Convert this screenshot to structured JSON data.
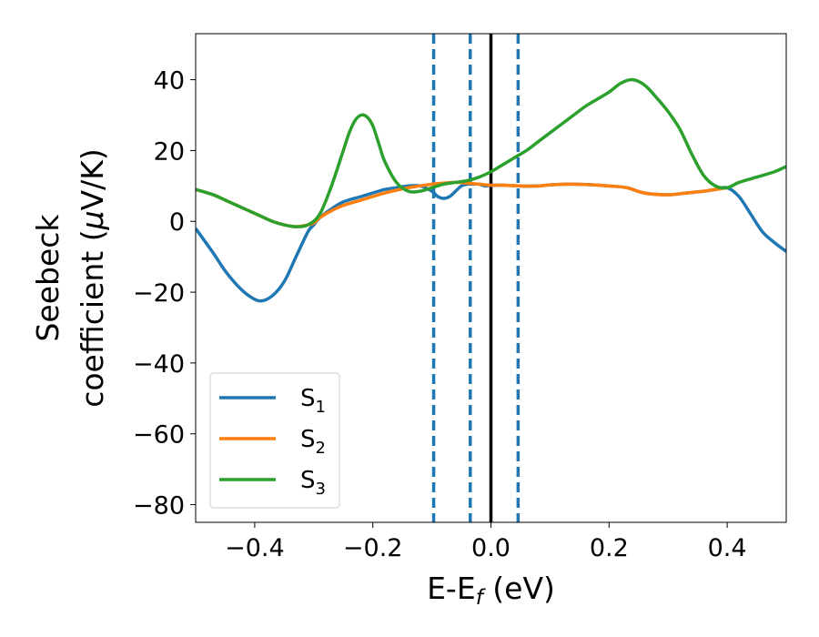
{
  "chart_data": {
    "type": "line",
    "xlabel": "E-E",
    "xlabel_sub": "f",
    "xlabel_unit": " (eV)",
    "ylabel_line1": "Seebeck",
    "ylabel_line2_pre": "coefficient  (",
    "ylabel_line2_mu": "μ",
    "ylabel_line2_post": "V/K)",
    "xlim": [
      -0.5,
      0.5
    ],
    "ylim": [
      -85,
      53
    ],
    "x_ticks": [
      {
        "value": -0.4,
        "label": "−0.4"
      },
      {
        "value": -0.2,
        "label": "−0.2"
      },
      {
        "value": 0.0,
        "label": "0.0"
      },
      {
        "value": 0.2,
        "label": "0.2"
      },
      {
        "value": 0.4,
        "label": "0.4"
      }
    ],
    "y_ticks": [
      {
        "value": 40,
        "label": "40"
      },
      {
        "value": 20,
        "label": "20"
      },
      {
        "value": 0,
        "label": "0"
      },
      {
        "value": -20,
        "label": "−20"
      },
      {
        "value": -40,
        "label": "−40"
      },
      {
        "value": -60,
        "label": "−60"
      },
      {
        "value": -80,
        "label": "−80"
      }
    ],
    "grid": false,
    "legend_position": "lower-left",
    "vlines": [
      {
        "x": -0.097,
        "style": "dashed",
        "color": "#1f77b4"
      },
      {
        "x": -0.035,
        "style": "dashed",
        "color": "#1f77b4"
      },
      {
        "x": 0.046,
        "style": "dashed",
        "color": "#1f77b4"
      },
      {
        "x": 0.0,
        "style": "solid",
        "color": "#000000"
      }
    ],
    "series": [
      {
        "name": "S",
        "sub": "1",
        "color": "#1f77b4",
        "x": [
          -0.5,
          -0.47,
          -0.45,
          -0.43,
          -0.41,
          -0.39,
          -0.37,
          -0.35,
          -0.33,
          -0.31,
          -0.3,
          -0.29,
          -0.27,
          -0.25,
          -0.22,
          -0.2,
          -0.18,
          -0.16,
          -0.14,
          -0.12,
          -0.1,
          -0.09,
          -0.08,
          -0.07,
          -0.06,
          -0.05,
          -0.04,
          -0.03,
          -0.02,
          -0.01,
          0.0,
          0.02,
          0.05,
          0.08,
          0.1,
          0.13,
          0.16,
          0.2,
          0.23,
          0.26,
          0.3,
          0.33,
          0.36,
          0.38,
          0.4,
          0.42,
          0.44,
          0.46,
          0.48,
          0.5
        ],
        "y": [
          -2,
          -9,
          -14,
          -18,
          -21,
          -22.5,
          -21,
          -17,
          -10,
          -3,
          -1,
          1,
          3.5,
          5.5,
          7,
          8,
          9,
          9.5,
          10,
          10,
          8.5,
          7,
          6.5,
          7,
          8.5,
          10,
          10.5,
          10.5,
          10.5,
          10,
          10.2,
          10.2,
          10,
          10,
          10.3,
          10.5,
          10.4,
          10,
          9.5,
          8,
          7.5,
          8,
          8.5,
          9,
          9.5,
          7,
          2,
          -3,
          -6,
          -8.5
        ]
      },
      {
        "name": "S",
        "sub": "2",
        "color": "#ff7f0e",
        "x": [
          -0.5,
          -0.47,
          -0.45,
          -0.43,
          -0.41,
          -0.39,
          -0.37,
          -0.35,
          -0.33,
          -0.31,
          -0.3,
          -0.29,
          -0.27,
          -0.25,
          -0.22,
          -0.2,
          -0.18,
          -0.16,
          -0.14,
          -0.12,
          -0.1,
          -0.08,
          -0.06,
          -0.04,
          -0.02,
          0.0,
          0.02,
          0.05,
          0.08,
          0.1,
          0.13,
          0.16,
          0.2,
          0.23,
          0.26,
          0.3,
          0.33,
          0.36,
          0.38,
          0.4
        ],
        "y": [
          9,
          7.5,
          6,
          4.5,
          3,
          1.5,
          0,
          -1,
          -1.5,
          -1,
          -0.5,
          1,
          3,
          4.5,
          6,
          7,
          8,
          8.8,
          9.5,
          10,
          10.5,
          10.8,
          11,
          10.8,
          10.5,
          10.2,
          10.2,
          10,
          10,
          10.3,
          10.5,
          10.4,
          10,
          9.5,
          8,
          7.5,
          8,
          8.5,
          9,
          9.5
        ]
      },
      {
        "name": "S",
        "sub": "3",
        "color": "#2ca02c",
        "x": [
          -0.5,
          -0.47,
          -0.45,
          -0.43,
          -0.41,
          -0.39,
          -0.37,
          -0.35,
          -0.33,
          -0.31,
          -0.29,
          -0.27,
          -0.25,
          -0.24,
          -0.23,
          -0.22,
          -0.21,
          -0.2,
          -0.19,
          -0.18,
          -0.16,
          -0.14,
          -0.12,
          -0.1,
          -0.08,
          -0.06,
          -0.04,
          -0.02,
          0.0,
          0.02,
          0.04,
          0.06,
          0.08,
          0.1,
          0.12,
          0.14,
          0.16,
          0.18,
          0.2,
          0.22,
          0.24,
          0.26,
          0.28,
          0.3,
          0.32,
          0.34,
          0.36,
          0.38,
          0.4,
          0.42,
          0.45,
          0.48,
          0.5
        ],
        "y": [
          9,
          7.5,
          6,
          4.5,
          3,
          1.5,
          0,
          -1,
          -1.5,
          -1,
          2,
          10,
          20,
          25,
          28.5,
          30,
          29.5,
          27,
          22,
          17,
          11,
          8.5,
          8.5,
          9.5,
          10.5,
          11,
          11.5,
          12.5,
          14,
          16,
          18,
          20,
          22.5,
          25,
          27.5,
          30,
          32.5,
          34.5,
          36.5,
          39,
          40,
          38.5,
          35,
          31,
          26,
          19,
          13,
          10,
          9.5,
          11,
          12.5,
          14,
          15.5
        ]
      }
    ]
  }
}
